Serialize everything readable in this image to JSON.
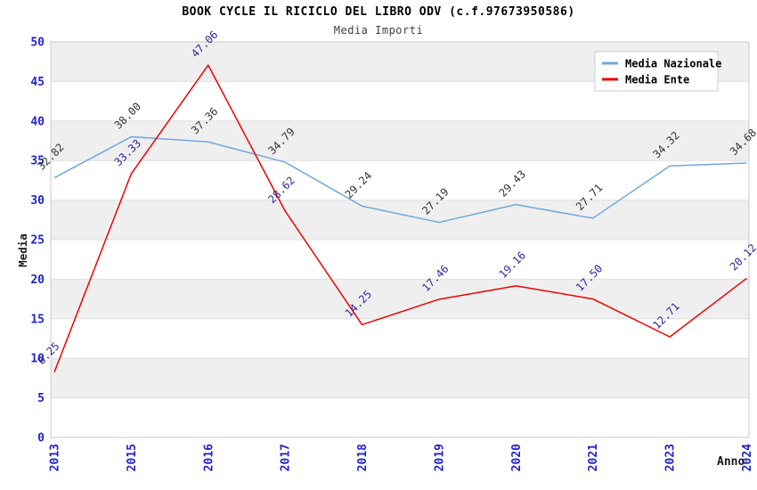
{
  "title": "BOOK CYCLE IL RICICLO DEL LIBRO ODV (c.f.97673950586)",
  "subtitle": "Media Importi",
  "colors": {
    "tick_label_blue": "#2323CC",
    "band_gray": "#EFEFEF",
    "gridline": "#E0E0E0",
    "plot_border": "#C8C8C8",
    "axis_title": "#1A1A1A",
    "legend_border": "#CCCCCC",
    "legend_text": "#000000"
  },
  "legend": {
    "entries": [
      {
        "label": "Media Nazionale",
        "swatch_color": "#6FA8DC"
      },
      {
        "label": "Media Ente",
        "swatch_color": "#F00000"
      }
    ]
  },
  "chart_data": {
    "type": "line",
    "title": "BOOK CYCLE IL RICICLO DEL LIBRO ODV (c.f.97673950586)",
    "subtitle": "Media Importi",
    "xlabel": "Anno",
    "ylabel": "Media",
    "ylim": [
      0,
      50
    ],
    "ytick_step": 5,
    "grid": "horizontal-bands-alternating",
    "legend_position": "top-right",
    "categories": [
      "2013",
      "2015",
      "2016",
      "2017",
      "2018",
      "2019",
      "2020",
      "2021",
      "2023",
      "2024"
    ],
    "series": [
      {
        "name": "Media Nazionale",
        "color": "#6FA8DC",
        "label_color": "#333333",
        "values": [
          32.82,
          38.0,
          37.36,
          34.79,
          29.24,
          27.19,
          29.43,
          27.71,
          34.32,
          34.68
        ]
      },
      {
        "name": "Media Ente",
        "color": "#F00000",
        "label_color": "#2A2AA0",
        "values": [
          8.25,
          33.33,
          47.06,
          28.62,
          14.25,
          17.46,
          19.16,
          17.5,
          12.71,
          20.12
        ]
      }
    ]
  }
}
